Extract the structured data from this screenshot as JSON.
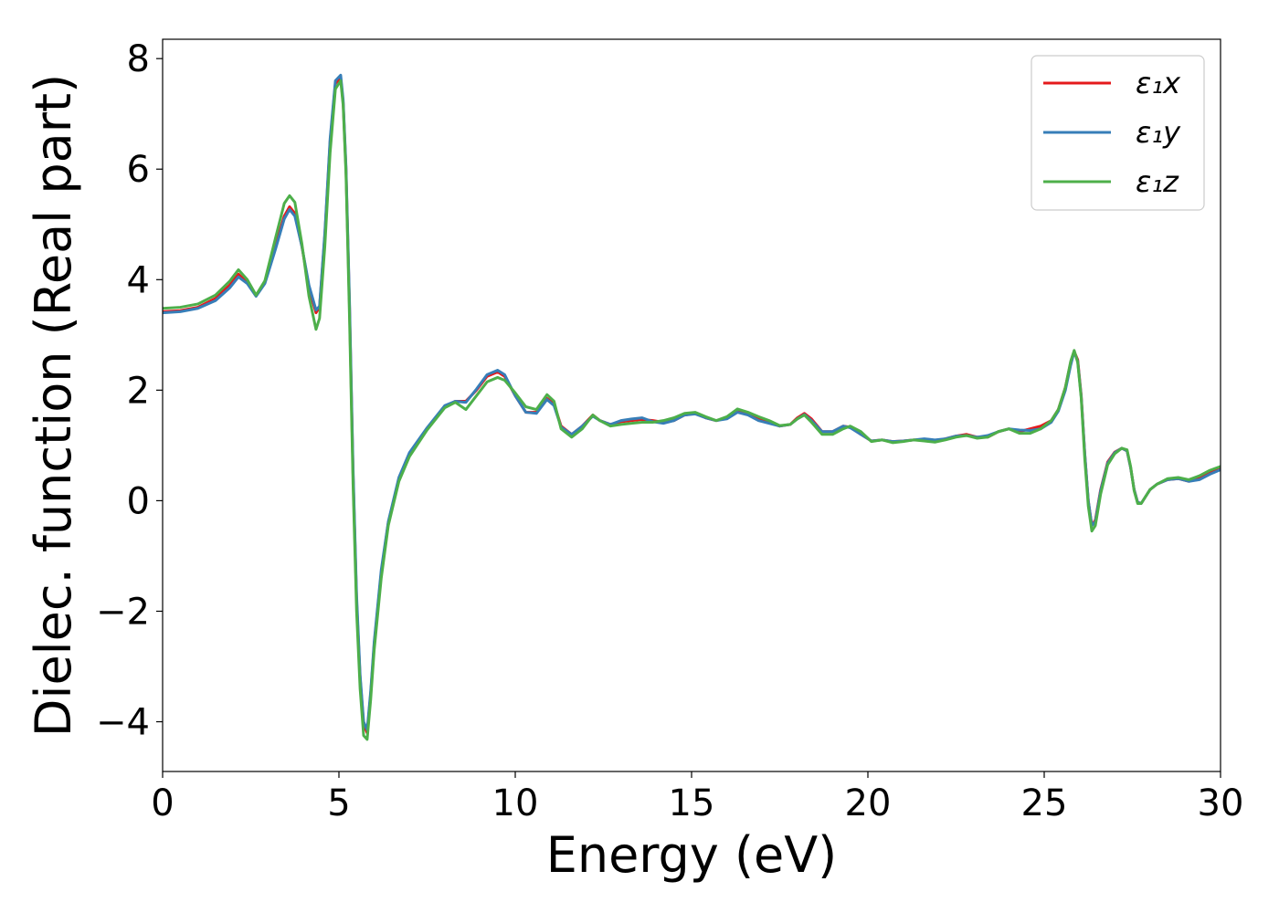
{
  "chart_data": {
    "type": "line",
    "title": "",
    "xlabel": "Energy (eV)",
    "ylabel": "Dielec. function (Real part)",
    "xlim": [
      0,
      30
    ],
    "ylim": [
      -4.9,
      8.35
    ],
    "xticks": [
      0,
      5,
      10,
      15,
      20,
      25,
      30
    ],
    "xtick_labels": [
      "0",
      "5",
      "10",
      "15",
      "20",
      "25",
      "30"
    ],
    "yticks": [
      -4,
      -2,
      0,
      2,
      4,
      6,
      8
    ],
    "ytick_labels": [
      "−4",
      "−2",
      "0",
      "2",
      "4",
      "6",
      "8"
    ],
    "grid": false,
    "legend_position": "top-right",
    "x": [
      0,
      0.5,
      1,
      1.5,
      1.9,
      2.15,
      2.4,
      2.65,
      2.9,
      3.2,
      3.45,
      3.6,
      3.75,
      3.95,
      4.15,
      4.35,
      4.45,
      4.6,
      4.75,
      4.9,
      5.05,
      5.12,
      5.2,
      5.3,
      5.4,
      5.5,
      5.6,
      5.7,
      5.8,
      5.9,
      6.0,
      6.2,
      6.4,
      6.7,
      7.0,
      7.5,
      8.0,
      8.3,
      8.6,
      8.9,
      9.2,
      9.5,
      9.7,
      10.0,
      10.3,
      10.6,
      10.9,
      11.1,
      11.3,
      11.6,
      11.9,
      12.2,
      12.4,
      12.7,
      13.0,
      13.3,
      13.6,
      13.9,
      14.2,
      14.5,
      14.8,
      15.1,
      15.4,
      15.7,
      16.0,
      16.3,
      16.6,
      16.9,
      17.2,
      17.5,
      17.8,
      18.0,
      18.2,
      18.4,
      18.7,
      19.0,
      19.3,
      19.5,
      19.8,
      20.1,
      20.4,
      20.7,
      21.0,
      21.3,
      21.6,
      21.9,
      22.2,
      22.5,
      22.8,
      23.1,
      23.4,
      23.7,
      24.0,
      24.3,
      24.6,
      24.9,
      25.2,
      25.4,
      25.6,
      25.75,
      25.85,
      25.95,
      26.05,
      26.15,
      26.25,
      26.35,
      26.45,
      26.6,
      26.8,
      27.0,
      27.2,
      27.35,
      27.45,
      27.55,
      27.65,
      27.75,
      27.85,
      28.0,
      28.2,
      28.5,
      28.8,
      29.1,
      29.4,
      29.7,
      30.0
    ],
    "series": [
      {
        "name": "ε₁x",
        "color": "#e41a1c",
        "values": [
          3.42,
          3.44,
          3.5,
          3.66,
          3.9,
          4.1,
          3.95,
          3.72,
          3.95,
          4.6,
          5.15,
          5.32,
          5.2,
          4.6,
          3.85,
          3.4,
          3.5,
          4.8,
          6.5,
          7.55,
          7.65,
          7.2,
          6.0,
          3.5,
          0.5,
          -1.8,
          -3.2,
          -4.05,
          -4.2,
          -3.5,
          -2.6,
          -1.3,
          -0.4,
          0.4,
          0.85,
          1.3,
          1.7,
          1.8,
          1.8,
          2.0,
          2.25,
          2.33,
          2.25,
          1.9,
          1.6,
          1.6,
          1.85,
          1.75,
          1.35,
          1.2,
          1.35,
          1.55,
          1.45,
          1.38,
          1.43,
          1.45,
          1.47,
          1.45,
          1.42,
          1.45,
          1.55,
          1.58,
          1.5,
          1.45,
          1.5,
          1.62,
          1.58,
          1.5,
          1.42,
          1.35,
          1.38,
          1.5,
          1.58,
          1.48,
          1.25,
          1.25,
          1.35,
          1.33,
          1.2,
          1.08,
          1.1,
          1.07,
          1.08,
          1.1,
          1.1,
          1.08,
          1.12,
          1.17,
          1.2,
          1.15,
          1.15,
          1.25,
          1.3,
          1.25,
          1.3,
          1.35,
          1.45,
          1.65,
          2.05,
          2.5,
          2.7,
          2.55,
          1.9,
          0.85,
          0.0,
          -0.45,
          -0.35,
          0.2,
          0.7,
          0.88,
          0.95,
          0.9,
          0.6,
          0.2,
          -0.03,
          -0.05,
          0.05,
          0.2,
          0.3,
          0.38,
          0.4,
          0.35,
          0.4,
          0.5,
          0.58
        ]
      },
      {
        "name": "ε₁y",
        "color": "#377eb8",
        "values": [
          3.4,
          3.42,
          3.48,
          3.62,
          3.85,
          4.05,
          3.93,
          3.7,
          3.93,
          4.55,
          5.1,
          5.27,
          5.15,
          4.6,
          3.9,
          3.45,
          3.52,
          4.85,
          6.55,
          7.6,
          7.7,
          7.25,
          6.05,
          3.6,
          0.6,
          -1.7,
          -3.15,
          -4.0,
          -4.15,
          -3.45,
          -2.55,
          -1.25,
          -0.38,
          0.42,
          0.87,
          1.32,
          1.72,
          1.8,
          1.78,
          2.02,
          2.28,
          2.36,
          2.28,
          1.9,
          1.6,
          1.58,
          1.83,
          1.72,
          1.33,
          1.2,
          1.35,
          1.53,
          1.45,
          1.38,
          1.45,
          1.48,
          1.5,
          1.43,
          1.4,
          1.45,
          1.55,
          1.57,
          1.5,
          1.45,
          1.48,
          1.6,
          1.55,
          1.45,
          1.4,
          1.35,
          1.38,
          1.48,
          1.56,
          1.45,
          1.25,
          1.25,
          1.35,
          1.32,
          1.2,
          1.08,
          1.1,
          1.07,
          1.08,
          1.1,
          1.12,
          1.1,
          1.12,
          1.17,
          1.18,
          1.15,
          1.18,
          1.25,
          1.3,
          1.28,
          1.27,
          1.3,
          1.42,
          1.62,
          2.0,
          2.45,
          2.7,
          2.52,
          1.88,
          0.85,
          0.0,
          -0.45,
          -0.38,
          0.18,
          0.68,
          0.87,
          0.95,
          0.9,
          0.6,
          0.2,
          -0.03,
          -0.05,
          0.05,
          0.2,
          0.3,
          0.38,
          0.4,
          0.35,
          0.38,
          0.48,
          0.56
        ]
      },
      {
        "name": "ε₁z",
        "color": "#4daf4a",
        "values": [
          3.48,
          3.5,
          3.56,
          3.72,
          3.97,
          4.18,
          4.0,
          3.72,
          3.98,
          4.75,
          5.38,
          5.52,
          5.4,
          4.65,
          3.7,
          3.1,
          3.3,
          4.6,
          6.3,
          7.45,
          7.6,
          7.15,
          5.9,
          3.3,
          0.3,
          -2.0,
          -3.4,
          -4.25,
          -4.32,
          -3.6,
          -2.7,
          -1.4,
          -0.45,
          0.35,
          0.8,
          1.28,
          1.68,
          1.78,
          1.65,
          1.9,
          2.15,
          2.23,
          2.18,
          1.95,
          1.7,
          1.65,
          1.92,
          1.8,
          1.3,
          1.15,
          1.3,
          1.55,
          1.45,
          1.35,
          1.38,
          1.4,
          1.42,
          1.42,
          1.45,
          1.5,
          1.58,
          1.6,
          1.52,
          1.45,
          1.52,
          1.66,
          1.6,
          1.52,
          1.45,
          1.36,
          1.38,
          1.48,
          1.55,
          1.42,
          1.2,
          1.2,
          1.3,
          1.35,
          1.25,
          1.07,
          1.1,
          1.05,
          1.07,
          1.1,
          1.08,
          1.06,
          1.1,
          1.15,
          1.18,
          1.13,
          1.15,
          1.25,
          1.3,
          1.22,
          1.22,
          1.3,
          1.45,
          1.65,
          2.05,
          2.52,
          2.72,
          2.5,
          1.85,
          0.75,
          -0.1,
          -0.55,
          -0.45,
          0.12,
          0.65,
          0.85,
          0.95,
          0.92,
          0.62,
          0.18,
          -0.05,
          -0.05,
          0.05,
          0.2,
          0.3,
          0.4,
          0.42,
          0.38,
          0.45,
          0.55,
          0.62
        ]
      }
    ]
  }
}
